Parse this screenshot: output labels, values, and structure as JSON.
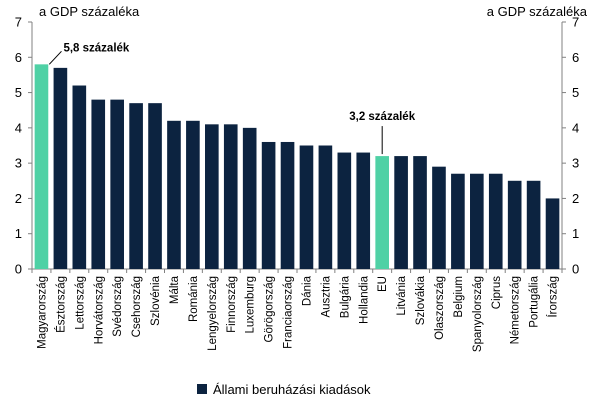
{
  "chart_data": {
    "type": "bar",
    "unit_left": "a GDP százaléka",
    "unit_right": "a GDP százaléka",
    "ylim": [
      0,
      7
    ],
    "yticks": [
      0,
      1,
      2,
      3,
      4,
      5,
      6,
      7
    ],
    "categories": [
      "Magyarország",
      "Észtország",
      "Lettország",
      "Horvátország",
      "Svédország",
      "Csehország",
      "Szlovénia",
      "Málta",
      "Románia",
      "Lengyelország",
      "Finnország",
      "Luxemburg",
      "Görögország",
      "Franciaország",
      "Dánia",
      "Ausztria",
      "Bulgária",
      "Hollandia",
      "EU",
      "Litvánia",
      "Szlovákia",
      "Olaszország",
      "Belgium",
      "Spanyolország",
      "Ciprus",
      "Németország",
      "Portugália",
      "Írország"
    ],
    "series": [
      {
        "name": "Állami beruházási kiadások",
        "values": [
          5.8,
          5.7,
          5.2,
          4.8,
          4.8,
          4.7,
          4.7,
          4.2,
          4.2,
          4.1,
          4.1,
          4.0,
          3.6,
          3.6,
          3.5,
          3.5,
          3.3,
          3.3,
          3.2,
          3.2,
          3.2,
          2.9,
          2.7,
          2.7,
          2.7,
          2.5,
          2.5,
          2.0
        ]
      }
    ],
    "highlighted": [
      "Magyarország",
      "EU"
    ],
    "annotations": [
      {
        "category": "Magyarország",
        "text": "5,8 százalék"
      },
      {
        "category": "EU",
        "text": "3,2 százalék"
      }
    ],
    "colors": {
      "bar": "#0c2340",
      "highlight": "#4fd1a5"
    },
    "grid": false,
    "legend_position": "bottom"
  }
}
